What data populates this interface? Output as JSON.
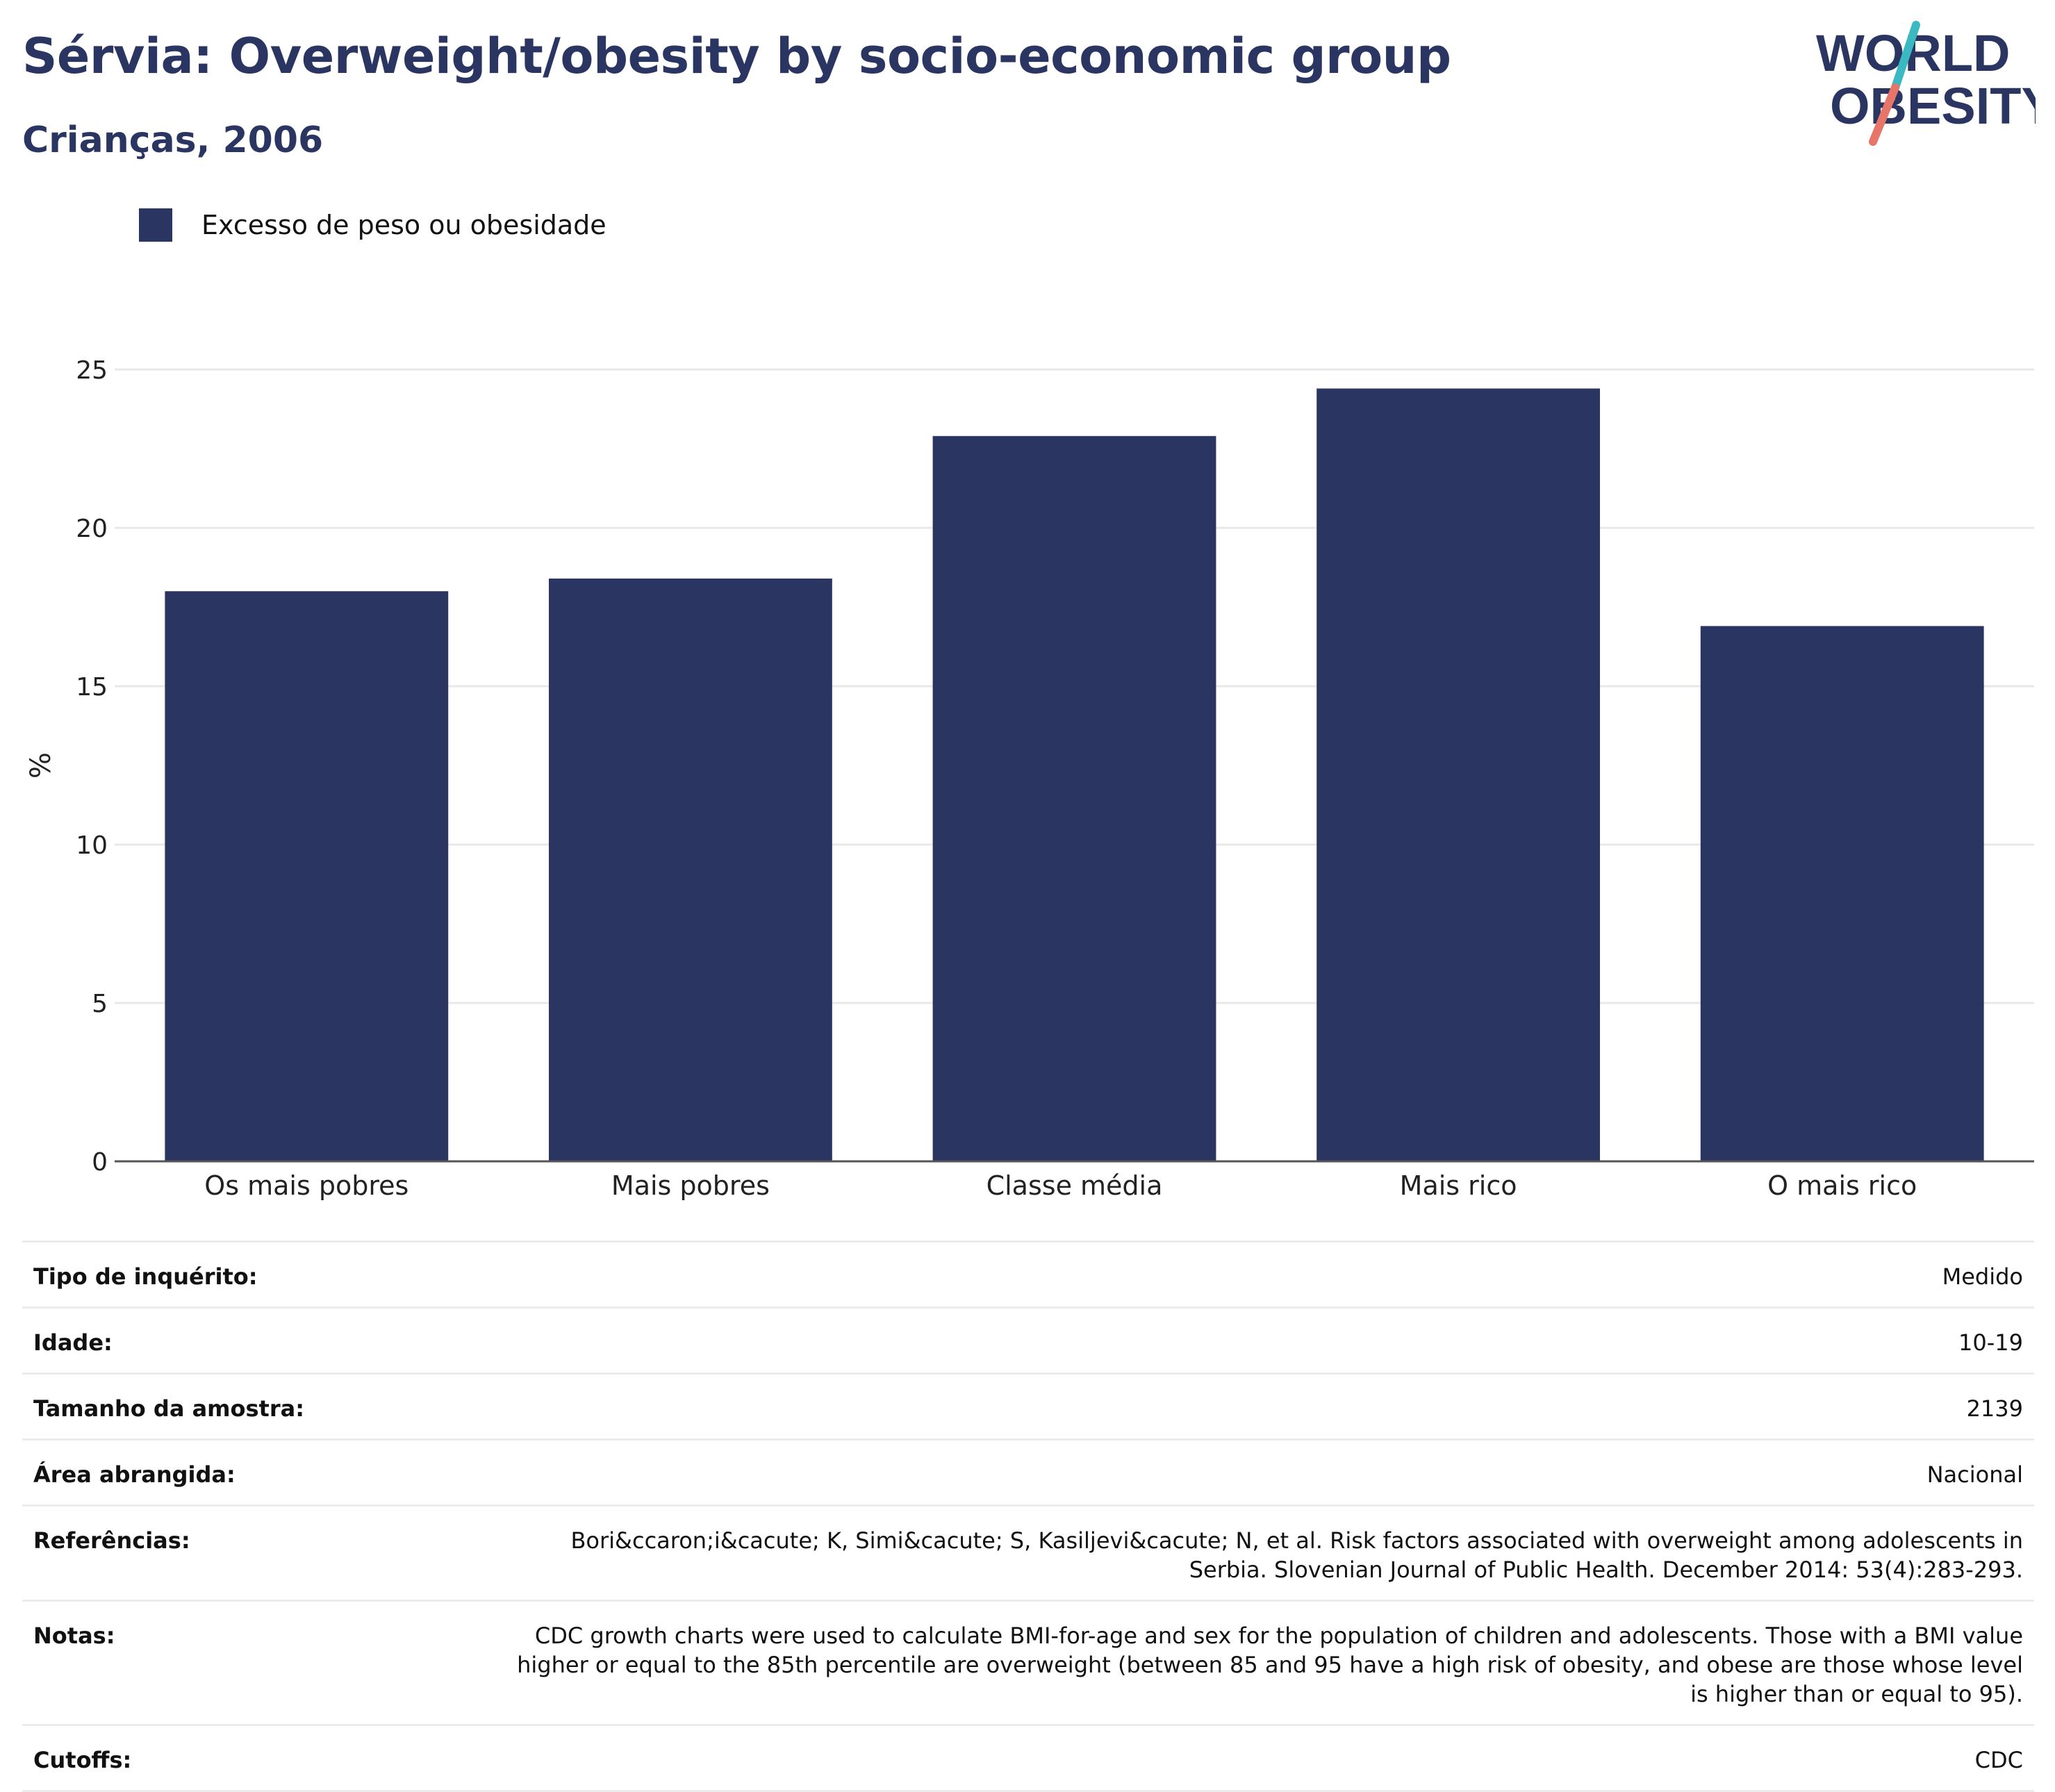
{
  "header": {
    "title": "Sérvia: Overweight/obesity by socio-economic group",
    "subtitle": "Crianças, 2006"
  },
  "logo": {
    "line1": "WORLD",
    "line2": "OBESITY",
    "colors": {
      "text": "#2b3562",
      "slash_top": "#3bb9c2",
      "slash_bottom": "#e8756a"
    }
  },
  "legend": {
    "label": "Excesso de peso ou obesidade",
    "color": "#2b3562"
  },
  "chart_data": {
    "type": "bar",
    "categories": [
      "Os mais pobres",
      "Mais pobres",
      "Classe média",
      "Mais rico",
      "O mais rico"
    ],
    "series": [
      {
        "name": "Excesso de peso ou obesidade",
        "values": [
          18.0,
          18.4,
          22.9,
          24.4,
          16.9
        ],
        "color": "#2b3562"
      }
    ],
    "ylabel": "%",
    "ylim": [
      0,
      25
    ],
    "yticks": [
      0,
      5,
      10,
      15,
      20,
      25
    ],
    "grid": true,
    "legend_position": "top-left"
  },
  "metadata": [
    {
      "key": "Tipo de inquérito:",
      "value": "Medido"
    },
    {
      "key": "Idade:",
      "value": "10-19"
    },
    {
      "key": "Tamanho da amostra:",
      "value": "2139"
    },
    {
      "key": "Área abrangida:",
      "value": "Nacional"
    },
    {
      "key": "Referências:",
      "value": "Bori&ccaron;i&cacute; K, Simi&cacute; S, Kasiljevi&cacute; N, et al. Risk factors associated with overweight among adolescents in Serbia. Slovenian Journal of Public Health. December 2014: 53(4):283-293."
    },
    {
      "key": "Notas:",
      "value": "CDC growth charts were used to calculate BMI-for-age and sex for the population of children and adolescents. Those with a BMI value higher or equal to the 85th percentile are overweight (between 85 and 95 have a high risk of obesity, and obese are those whose level is higher than or equal to 95)."
    },
    {
      "key": "Cutoffs:",
      "value": "CDC"
    }
  ]
}
